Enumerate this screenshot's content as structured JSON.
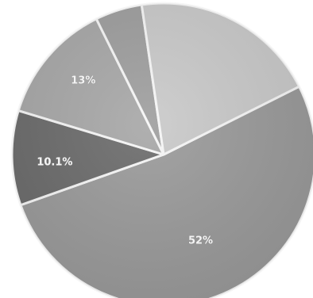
{
  "chart_data": {
    "type": "pie",
    "slices": [
      {
        "label": "52%",
        "value": 52,
        "color": "#9a9a9a"
      },
      {
        "label": "10.1%",
        "value": 10.1,
        "color": "#6b6b6b"
      },
      {
        "label": "13%",
        "value": 13,
        "color": "#a7a7a7"
      },
      {
        "label": "",
        "value": 5,
        "color": "#9e9e9e"
      },
      {
        "label": "",
        "value": 19.9,
        "color": "#c9c9c9"
      }
    ],
    "legend": "none",
    "title": ""
  }
}
